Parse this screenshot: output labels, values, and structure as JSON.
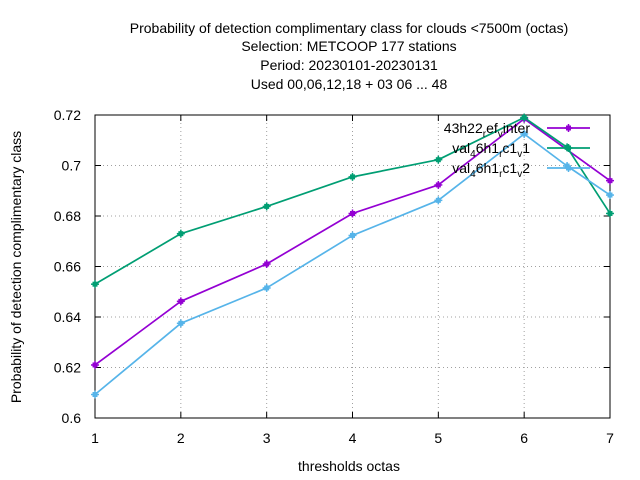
{
  "chart_data": {
    "type": "line",
    "title_lines": [
      "Probability of detection complimentary class  for clouds <7500m (octas)",
      "Selection: METCOOP    177 stations",
      "Period: 20230101-20230131",
      "Used  00,06,12,18  + 03 06 ... 48"
    ],
    "xlabel": "thresholds octas",
    "ylabel": "Probability of detection complimentary class",
    "x": [
      1,
      2,
      3,
      4,
      5,
      6,
      7
    ],
    "xlim": [
      1,
      7
    ],
    "ylim": [
      0.6,
      0.72
    ],
    "x_ticks": [
      "1",
      "2",
      "3",
      "4",
      "5",
      "6",
      "7"
    ],
    "y_ticks": [
      "0.6",
      "0.62",
      "0.64",
      "0.66",
      "0.68",
      "0.7",
      "0.72"
    ],
    "grid": true,
    "legend_position": "top-right",
    "series": [
      {
        "name": "43h22_ref_v_inter",
        "legend_parts": [
          [
            "43h22",
            "n"
          ],
          [
            "r",
            "sub"
          ],
          [
            "ef",
            "n"
          ],
          [
            "v",
            "sub"
          ],
          [
            "inter",
            "n"
          ]
        ],
        "color": "#9400d3",
        "x": [
          1,
          2,
          3,
          4,
          5,
          6,
          7
        ],
        "values": [
          0.621,
          0.6462,
          0.661,
          0.681,
          0.6923,
          0.7185,
          0.694
        ]
      },
      {
        "name": "val_46h1_rc1_v1",
        "legend_parts": [
          [
            "val",
            "n"
          ],
          [
            "4",
            "sub"
          ],
          [
            "6h1",
            "n"
          ],
          [
            "r",
            "sub"
          ],
          [
            "c1",
            "n"
          ],
          [
            "v",
            "sub"
          ],
          [
            "1",
            "n"
          ]
        ],
        "color": "#009e73",
        "x": [
          1,
          2,
          3,
          4,
          5,
          6,
          6.5,
          7
        ],
        "values": [
          0.653,
          0.673,
          0.6838,
          0.6955,
          0.7023,
          0.719,
          0.7072,
          0.681
        ]
      },
      {
        "name": "val_46h1_rc1_v2",
        "legend_parts": [
          [
            "val",
            "n"
          ],
          [
            "4",
            "sub"
          ],
          [
            "6h1",
            "n"
          ],
          [
            "r",
            "sub"
          ],
          [
            "c1",
            "n"
          ],
          [
            "v",
            "sub"
          ],
          [
            "2",
            "n"
          ]
        ],
        "color": "#56b4e9",
        "x": [
          1,
          2,
          3,
          4,
          5,
          6,
          6.5,
          7
        ],
        "values": [
          0.6093,
          0.6375,
          0.6515,
          0.6723,
          0.6862,
          0.7125,
          0.6998,
          0.6883
        ]
      }
    ]
  }
}
